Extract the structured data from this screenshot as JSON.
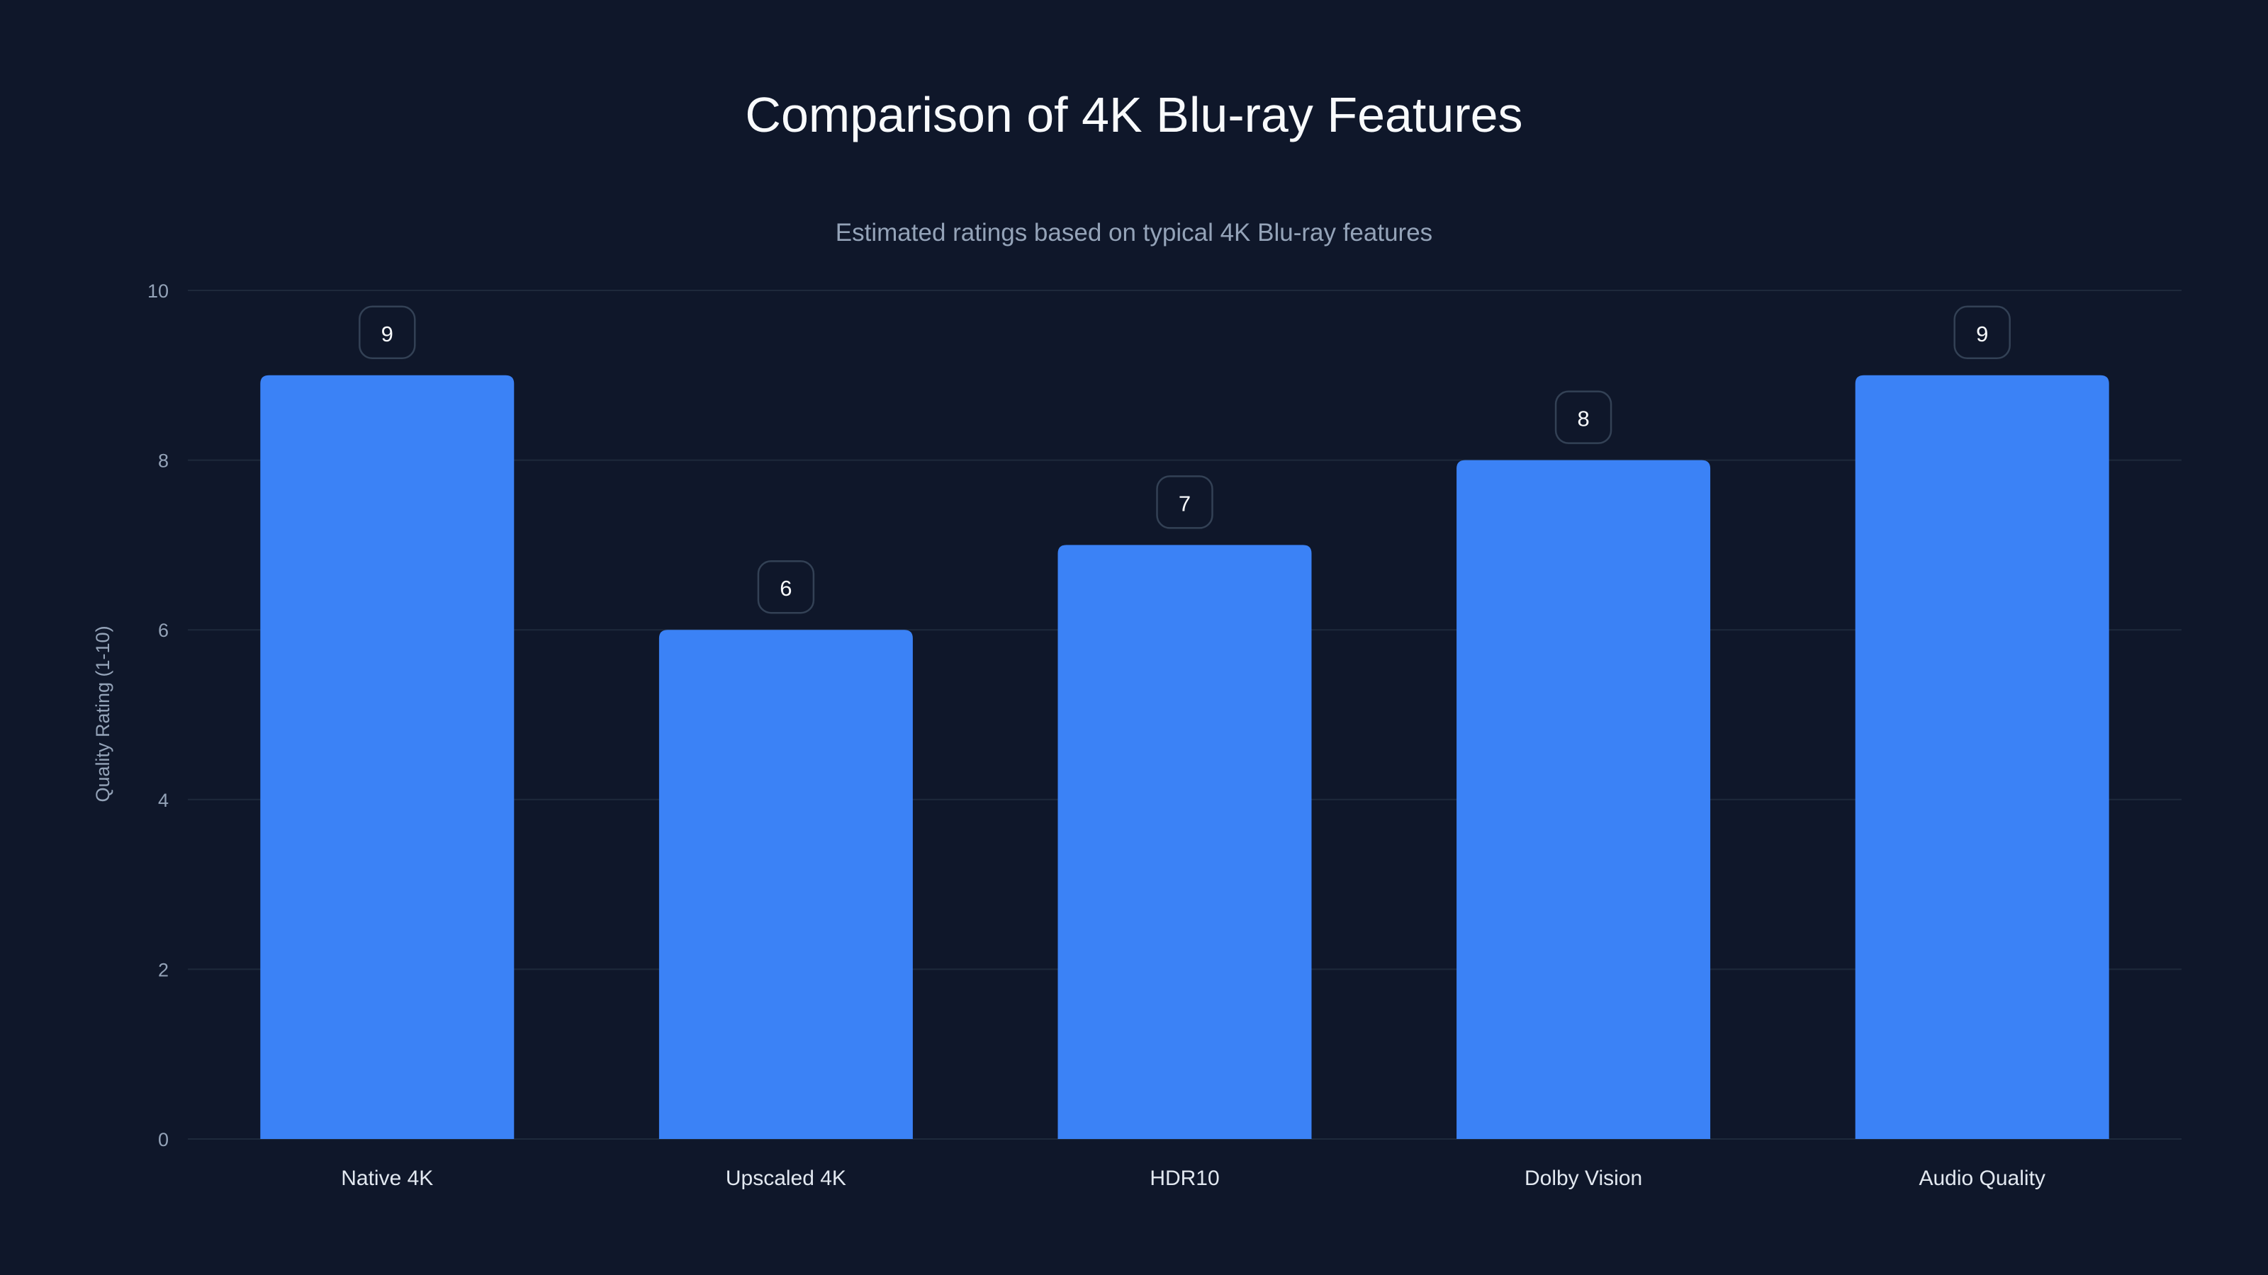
{
  "chart_data": {
    "type": "bar",
    "title": "Comparison of 4K Blu-ray Features",
    "subtitle": "Estimated ratings based on typical 4K Blu-ray features",
    "xlabel": "",
    "ylabel": "Quality Rating (1-10)",
    "categories": [
      "Native 4K",
      "Upscaled 4K",
      "HDR10",
      "Dolby Vision",
      "Audio Quality"
    ],
    "values": [
      9,
      6,
      7,
      8,
      9
    ],
    "ylim": [
      0,
      10
    ],
    "yticks": [
      0,
      2,
      4,
      6,
      8,
      10
    ],
    "grid": true,
    "data_labels": true,
    "colors": {
      "background": "#0f172a",
      "bar": "#3b82f6",
      "grid": "#1e293b",
      "text": "#f8fafc",
      "muted": "#94a3b8",
      "label_border": "#334155"
    }
  }
}
